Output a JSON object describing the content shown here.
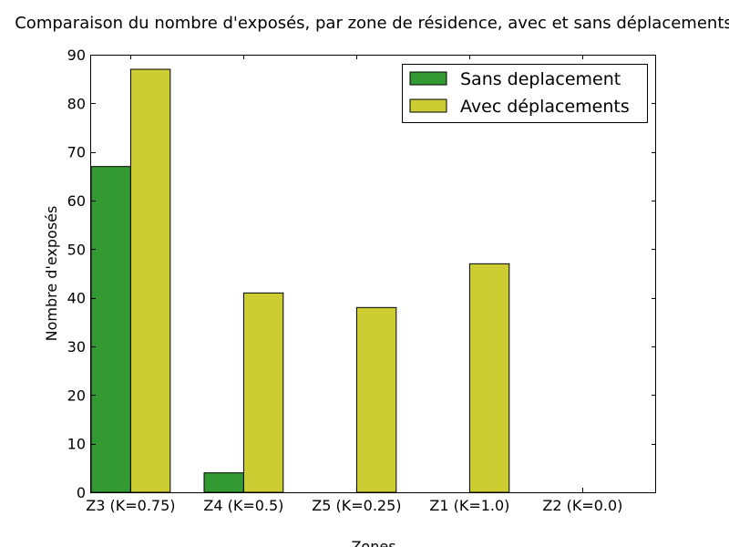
{
  "chart_data": {
    "type": "bar",
    "title": "Comparaison du nombre d'exposés, par zone de résidence, avec et sans déplacements",
    "xlabel": "Zones",
    "ylabel": "Nombre d'exposés",
    "ylim": [
      0,
      90
    ],
    "yticks": [
      0,
      10,
      20,
      30,
      40,
      50,
      60,
      70,
      80,
      90
    ],
    "grid": false,
    "legend_position": "top-right",
    "categories": [
      "Z3 (K=0.75)",
      "Z4 (K=0.5)",
      "Z5 (K=0.25)",
      "Z1 (K=1.0)",
      "Z2 (K=0.0)"
    ],
    "series": [
      {
        "name": "Sans deplacement",
        "color": "#339933",
        "values": [
          67,
          4,
          0,
          0,
          0
        ]
      },
      {
        "name": "Avec déplacements",
        "color": "#cccc33",
        "values": [
          87,
          41,
          38,
          47,
          0
        ]
      }
    ]
  }
}
